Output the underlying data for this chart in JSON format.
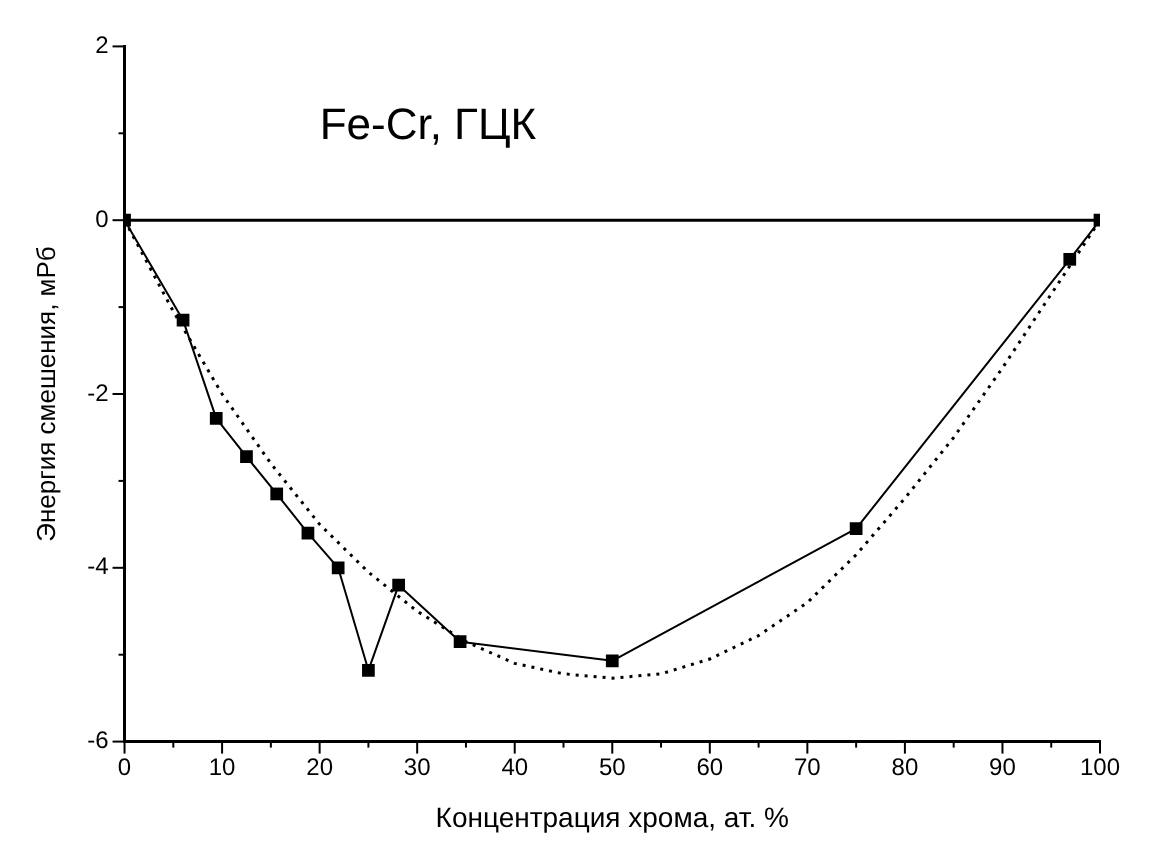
{
  "chart_data": {
    "type": "line",
    "annotations": [
      "Fe-Cr, ГЦК"
    ],
    "xlabel": "Концентрация хрома, ат. %",
    "ylabel": "Энергия смешения, мРб",
    "xlim": [
      0,
      100
    ],
    "xticks": [
      0,
      {
        "value": 5,
        "label": null
      },
      10,
      {
        "value": 15,
        "label": null
      },
      20,
      {
        "value": 25,
        "label": null
      },
      30,
      {
        "value": 35,
        "label": null
      },
      40,
      {
        "value": 45,
        "label": null
      },
      50,
      {
        "value": 55,
        "label": null
      },
      60,
      {
        "value": 65,
        "label": null
      },
      70,
      {
        "value": 75,
        "label": null
      },
      80,
      {
        "value": 85,
        "label": null
      },
      90,
      {
        "value": 95,
        "label": null
      },
      100
    ],
    "ylim": [
      -6,
      2
    ],
    "yticks": [
      -6,
      {
        "value": -5,
        "label": null
      },
      -4,
      {
        "value": -3,
        "label": null
      },
      -2,
      {
        "value": -1,
        "label": null
      },
      0,
      {
        "value": 1,
        "label": null
      },
      2
    ],
    "grid": false,
    "legend": false,
    "ref_lines": [
      {
        "axis": "y",
        "value": 0,
        "color": "#000000",
        "line_style": "solid"
      }
    ],
    "series": [
      {
        "color": "#000000",
        "marker": "square",
        "line_style": "solid",
        "x": [
          0,
          6,
          9.4,
          12.5,
          15.6,
          18.8,
          21.9,
          25,
          28.1,
          34.4,
          50,
          75,
          96.9,
          100
        ],
        "values": [
          0,
          -1.15,
          -2.28,
          -2.72,
          -3.15,
          -3.6,
          -4.0,
          -5.18,
          -4.2,
          -4.85,
          -5.07,
          -3.55,
          -0.45,
          0
        ]
      },
      {
        "color": "#000000",
        "marker": "none",
        "line_style": "dotted",
        "x": [
          0,
          5,
          10,
          15,
          20,
          25,
          30,
          35,
          40,
          45,
          50,
          55,
          60,
          65,
          70,
          75,
          80,
          85,
          90,
          95,
          100
        ],
        "values": [
          0,
          -1.05,
          -2.0,
          -2.8,
          -3.5,
          -4.05,
          -4.5,
          -4.85,
          -5.1,
          -5.22,
          -5.27,
          -5.22,
          -5.05,
          -4.78,
          -4.4,
          -3.85,
          -3.2,
          -2.5,
          -1.7,
          -0.85,
          0
        ]
      }
    ]
  }
}
